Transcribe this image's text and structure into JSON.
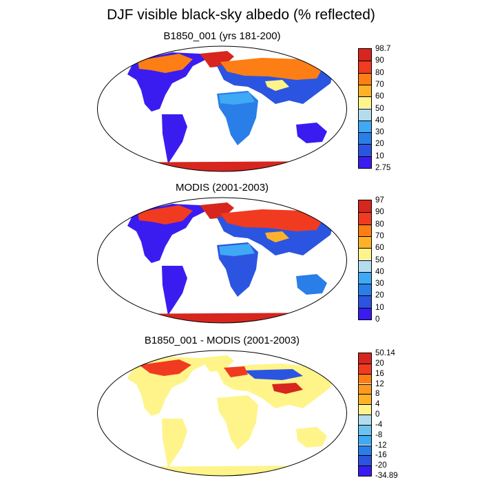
{
  "title": "DJF visible black-sky albedo (% reflected)",
  "panels": [
    {
      "title": "B1850_001 (yrs 181-200)",
      "colorbar": {
        "labels": [
          "98.7",
          "90",
          "80",
          "70",
          "60",
          "50",
          "40",
          "30",
          "20",
          "10",
          "2.75"
        ],
        "colors": [
          "#d7261e",
          "#f03b20",
          "#fd7e14",
          "#fdb22a",
          "#fff48a",
          "#b4dcef",
          "#3fa9f5",
          "#2a7ee8",
          "#2b55e0",
          "#3b1cf0"
        ]
      }
    },
    {
      "title": "MODIS (2001-2003)",
      "colorbar": {
        "labels": [
          "97",
          "90",
          "80",
          "70",
          "60",
          "50",
          "40",
          "30",
          "20",
          "10",
          "0"
        ],
        "colors": [
          "#d7261e",
          "#f03b20",
          "#fd7e14",
          "#fdb22a",
          "#fff48a",
          "#b4dcef",
          "#3fa9f5",
          "#2a7ee8",
          "#2b55e0",
          "#3b1cf0"
        ]
      }
    },
    {
      "title": "B1850_001 - MODIS (2001-2003)",
      "colorbar": {
        "labels": [
          "50.14",
          "20",
          "16",
          "12",
          "8",
          "4",
          "0",
          "-4",
          "-8",
          "-12",
          "-16",
          "-20",
          "-34.89"
        ],
        "colors": [
          "#d7261e",
          "#f03b20",
          "#fd7e14",
          "#fd9a1e",
          "#fdb22a",
          "#fff48a",
          "#b4dcef",
          "#6cc3f0",
          "#3fa9f5",
          "#2a7ee8",
          "#2b55e0",
          "#3b1cf0"
        ]
      }
    }
  ]
}
